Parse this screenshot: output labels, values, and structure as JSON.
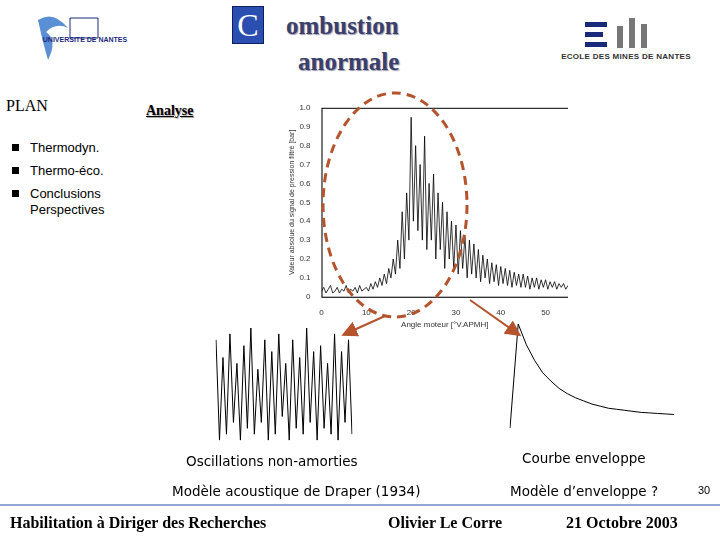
{
  "header": {
    "initial": "C",
    "lines": [
      "ombustion",
      "anormale"
    ]
  },
  "logos": {
    "left": "UNIVERSITE DE NANTES",
    "right": "ECOLE DES MINES DE NANTES"
  },
  "plan": {
    "title": "PLAN",
    "items": [
      "Thermodyn.",
      "Thermo-éco.",
      "Conclusions Perspectives"
    ]
  },
  "section": "Analyse",
  "captions": {
    "left": "Oscillations non-amorties",
    "right": "Courbe enveloppe",
    "left_model": "Modèle acoustique de Draper (1934)",
    "right_model": "Modèle d’enveloppe ?"
  },
  "footer": {
    "left": "Habilitation à Diriger des Recherches",
    "center": "Olivier Le Corre",
    "right": "21 Octobre 2003",
    "page": 30
  },
  "chart_data": [
    {
      "type": "line",
      "color": "#000000",
      "x_label": "Angle moteur [°V.APMH]",
      "y_label": "Valeur absolue du signal de pression filtré [bar]",
      "x": [
        0,
        0.5,
        1,
        1.5,
        2,
        2.5,
        3,
        3.5,
        4,
        4.5,
        5,
        5.5,
        6,
        6.5,
        7,
        7.5,
        8,
        8.5,
        9,
        9.5,
        10,
        10.5,
        11,
        11.5,
        12,
        12.5,
        13,
        13.5,
        14,
        14.5,
        15,
        15.5,
        16,
        16.5,
        17,
        17.5,
        18,
        18.5,
        19,
        19.5,
        20,
        20.5,
        21,
        21.5,
        22,
        22.5,
        23,
        23.5,
        24,
        24.5,
        25,
        25.5,
        26,
        26.5,
        27,
        27.5,
        28,
        28.5,
        29,
        29.5,
        30,
        30.5,
        31,
        31.5,
        32,
        32.5,
        33,
        33.5,
        34,
        34.5,
        35,
        35.5,
        36,
        36.5,
        37,
        37.5,
        38,
        38.5,
        39,
        39.5,
        40,
        40.5,
        41,
        41.5,
        42,
        42.5,
        43,
        43.5,
        44,
        44.5,
        45,
        45.5,
        46,
        46.5,
        47,
        47.5,
        48,
        48.5,
        49,
        49.5,
        50,
        50.5,
        51,
        51.5,
        52,
        52.5,
        53,
        53.5,
        54,
        54.5,
        55
      ],
      "values": [
        0.03,
        0.05,
        0.02,
        0.04,
        0.06,
        0.02,
        0.03,
        0.05,
        0.02,
        0.04,
        0.03,
        0.06,
        0.02,
        0.04,
        0.03,
        0.05,
        0.02,
        0.06,
        0.03,
        0.04,
        0.05,
        0.03,
        0.07,
        0.04,
        0.08,
        0.05,
        0.1,
        0.06,
        0.12,
        0.07,
        0.15,
        0.1,
        0.2,
        0.12,
        0.3,
        0.15,
        0.45,
        0.2,
        0.55,
        0.3,
        0.95,
        0.4,
        0.8,
        0.35,
        0.7,
        0.3,
        0.85,
        0.25,
        0.6,
        0.3,
        0.65,
        0.2,
        0.55,
        0.25,
        0.5,
        0.15,
        0.45,
        0.2,
        0.4,
        0.15,
        0.38,
        0.12,
        0.35,
        0.15,
        0.32,
        0.1,
        0.3,
        0.12,
        0.28,
        0.1,
        0.25,
        0.08,
        0.22,
        0.1,
        0.2,
        0.07,
        0.18,
        0.08,
        0.17,
        0.06,
        0.16,
        0.07,
        0.15,
        0.06,
        0.14,
        0.05,
        0.13,
        0.06,
        0.12,
        0.05,
        0.12,
        0.05,
        0.11,
        0.04,
        0.1,
        0.05,
        0.1,
        0.04,
        0.09,
        0.05,
        0.09,
        0.04,
        0.08,
        0.05,
        0.08,
        0.04,
        0.07,
        0.05,
        0.07,
        0.04,
        0.06
      ],
      "xlim": [
        0,
        55
      ],
      "xticks": [
        0,
        10,
        20,
        30,
        40,
        50
      ],
      "ylim": [
        0,
        1
      ],
      "yticks": [
        0,
        0.1,
        0.2,
        0.3,
        0.4,
        0.5,
        0.6,
        0.7,
        0.8,
        0.9,
        {
          "value": 1,
          "label": "1.0"
        }
      ],
      "grid": false
    },
    {
      "type": "line",
      "color": "#000000",
      "tick_labels": false,
      "grid": false,
      "ylim": [
        0,
        1
      ],
      "values": [
        0.9,
        0.05,
        0.75,
        0.1,
        0.95,
        0.2,
        0.7,
        0.05,
        0.85,
        0.15,
        1.0,
        0.1,
        0.65,
        0.2,
        0.9,
        0.05,
        0.8,
        0.1,
        0.95,
        0.25,
        0.7,
        0.05,
        0.9,
        0.15,
        0.75,
        0.1,
        1.0,
        0.2,
        0.8,
        0.05,
        0.85,
        0.15,
        0.7,
        0.1,
        0.95,
        0.05,
        0.8,
        0.2,
        0.9,
        0.1
      ]
    },
    {
      "type": "line",
      "color": "#000000",
      "tick_labels": false,
      "grid": false,
      "ylim": [
        0,
        1
      ],
      "values": [
        0,
        1,
        0.8,
        0.65,
        0.53,
        0.45,
        0.38,
        0.33,
        0.29,
        0.26,
        0.23,
        0.21,
        0.19,
        0.18,
        0.17,
        0.16,
        0.15,
        0.145,
        0.14,
        0.135,
        0.13
      ]
    }
  ]
}
